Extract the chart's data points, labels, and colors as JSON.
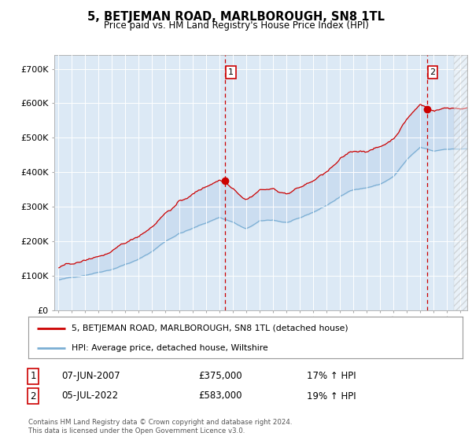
{
  "title": "5, BETJEMAN ROAD, MARLBOROUGH, SN8 1TL",
  "subtitle": "Price paid vs. HM Land Registry's House Price Index (HPI)",
  "background_color": "#ffffff",
  "plot_bg_color": "#dce9f5",
  "red_line_color": "#cc0000",
  "blue_line_color": "#7bafd4",
  "fill_color": "#c5d9ee",
  "sale1_date": "07-JUN-2007",
  "sale1_price": "£375,000",
  "sale1_hpi": "17% ↑ HPI",
  "sale1_year": 2007.45,
  "sale1_value": 375000,
  "sale2_date": "05-JUL-2022",
  "sale2_price": "£583,000",
  "sale2_hpi": "19% ↑ HPI",
  "sale2_year": 2022.51,
  "sale2_value": 583000,
  "legend_label1": "5, BETJEMAN ROAD, MARLBOROUGH, SN8 1TL (detached house)",
  "legend_label2": "HPI: Average price, detached house, Wiltshire",
  "footer": "Contains HM Land Registry data © Crown copyright and database right 2024.\nThis data is licensed under the Open Government Licence v3.0.",
  "xlim_start": 1994.7,
  "xlim_end": 2025.5,
  "ylim_min": 0,
  "ylim_max": 740000,
  "yticks": [
    0,
    100000,
    200000,
    300000,
    400000,
    500000,
    600000,
    700000
  ],
  "ytick_labels": [
    "£0",
    "£100K",
    "£200K",
    "£300K",
    "£400K",
    "£500K",
    "£600K",
    "£700K"
  ]
}
